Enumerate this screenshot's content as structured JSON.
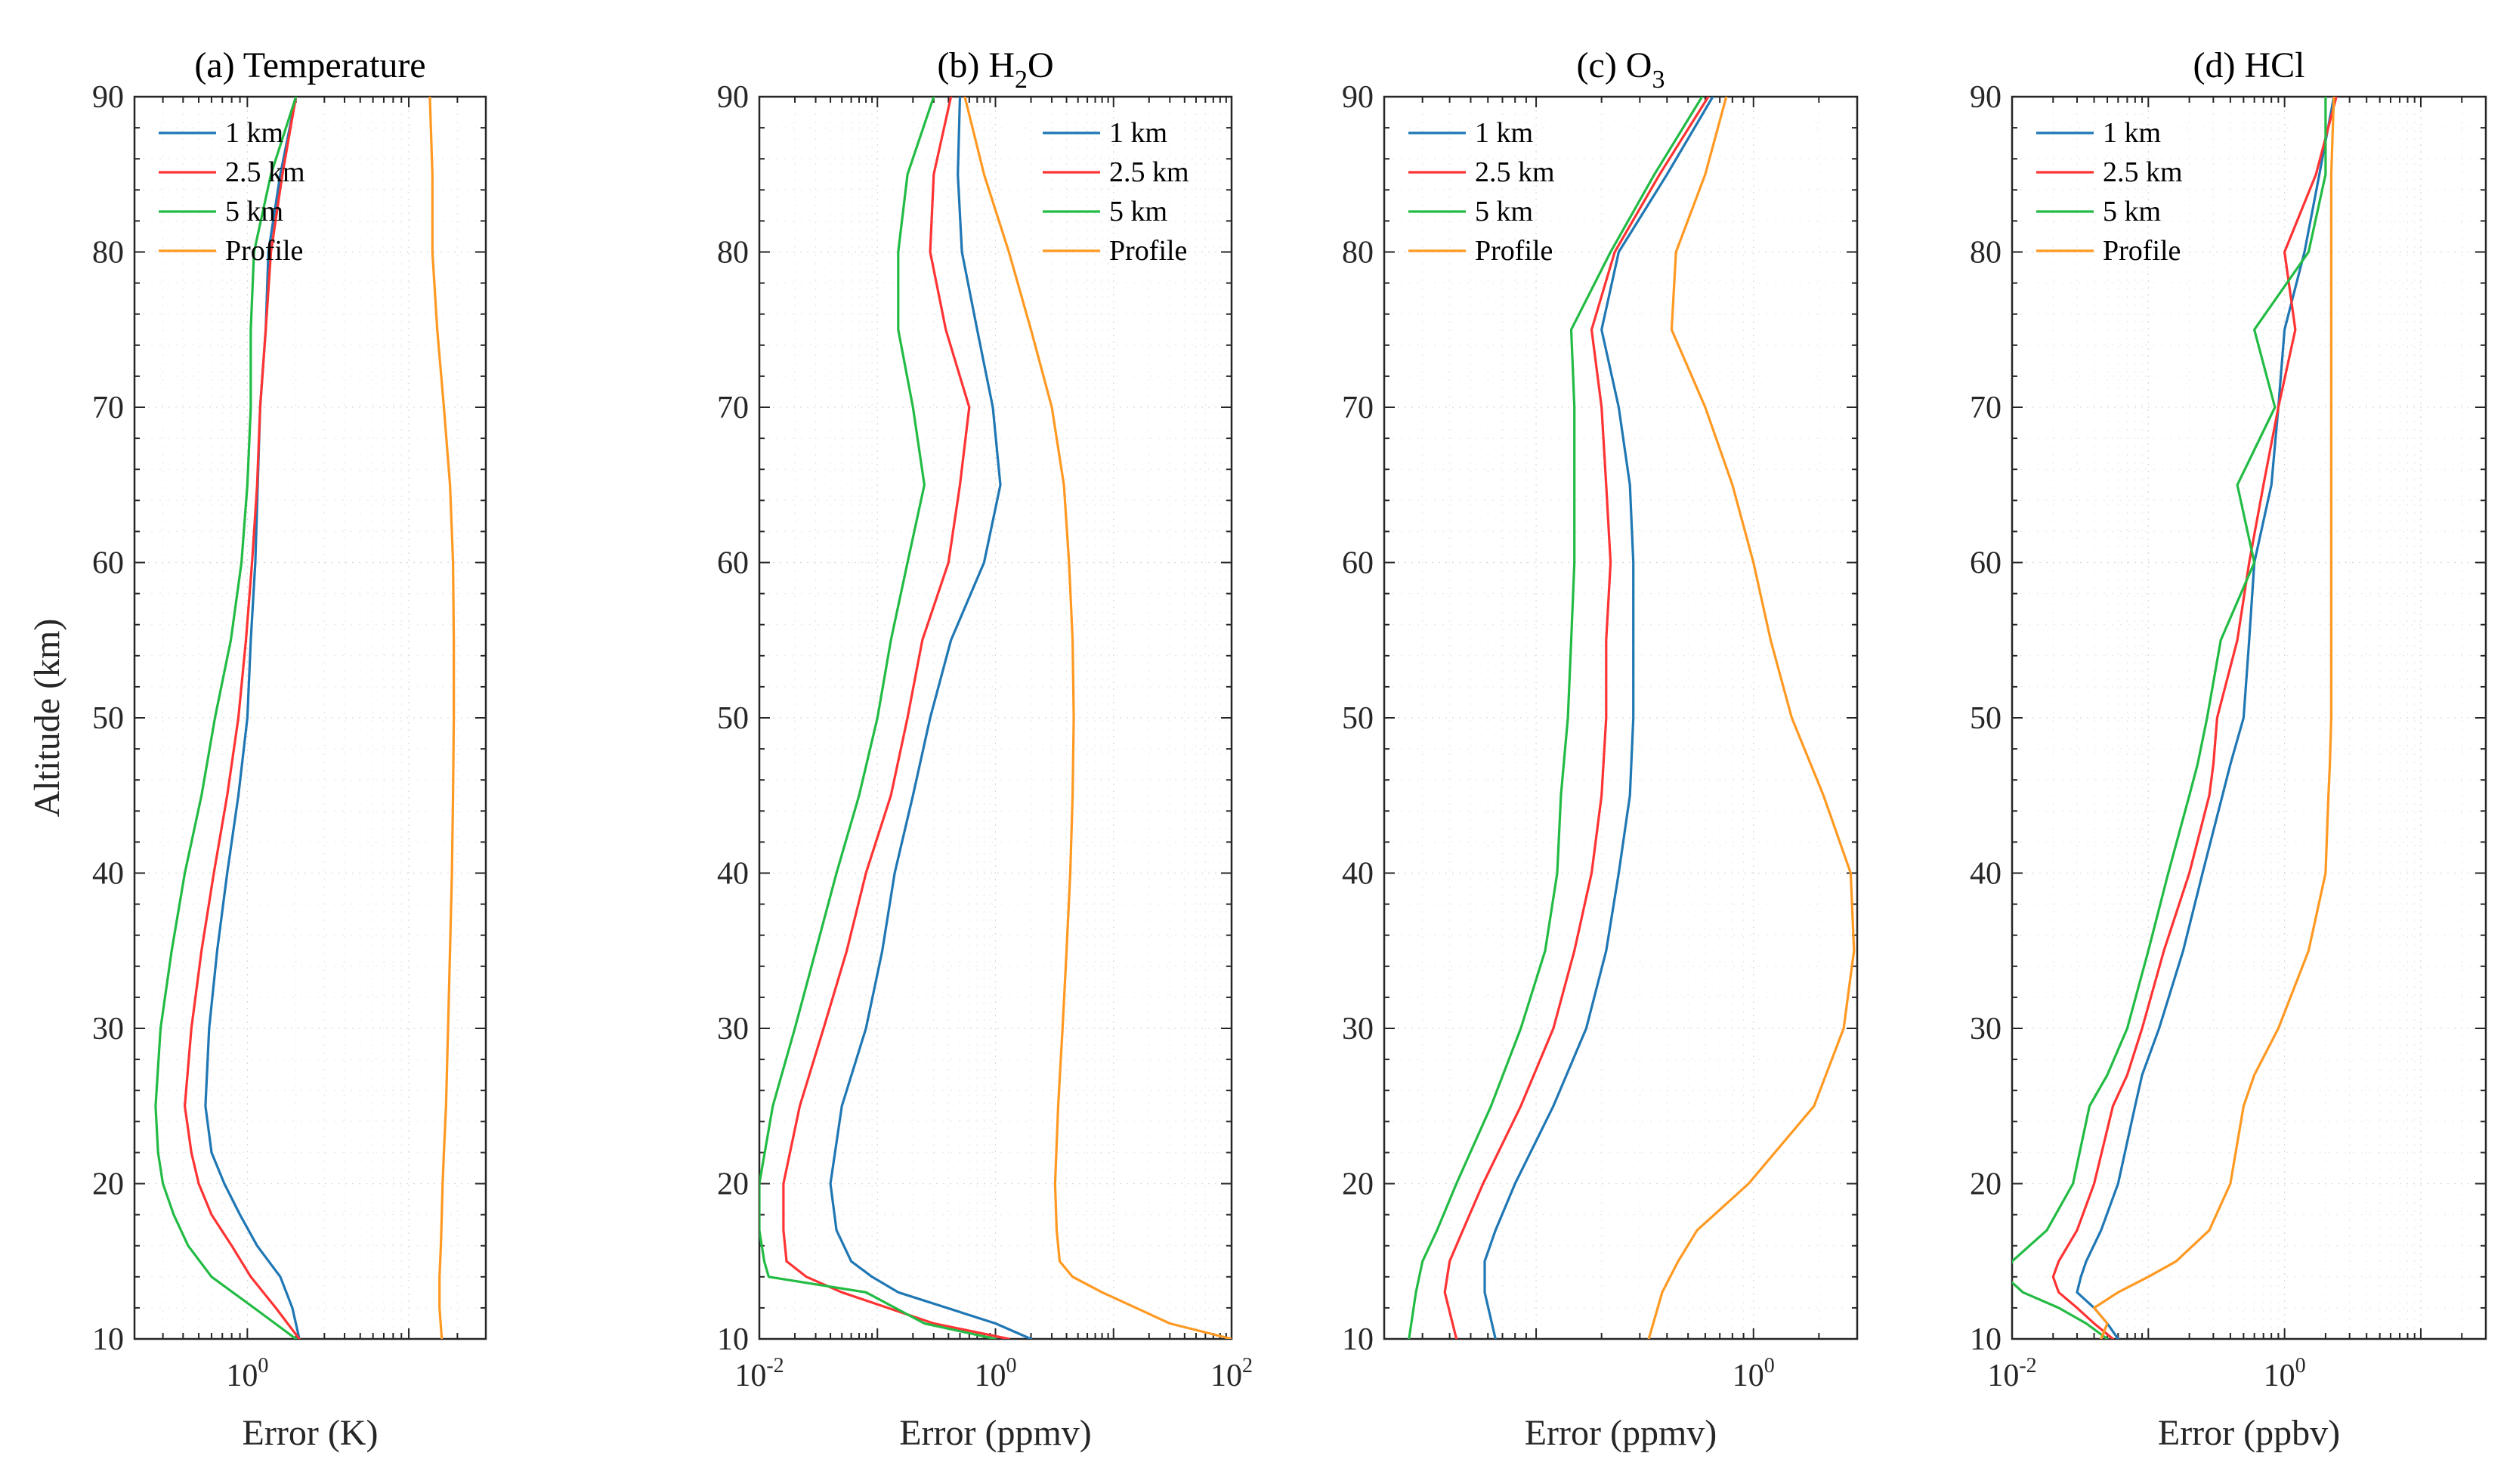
{
  "figure": {
    "ylabel": "Altitude (km)",
    "colors": {
      "1 km": "#1f77b4",
      "2.5 km": "#ff3333",
      "5 km": "#22bb44",
      "Profile": "#ff9922"
    }
  },
  "chart_data": [
    {
      "type": "line",
      "title": "(a) Temperature",
      "xlabel": "Error (K)",
      "ylabel": "Altitude (km)",
      "xscale": "log",
      "xlim": [
        0.2,
        30
      ],
      "ylim": [
        10,
        90
      ],
      "yticks": [
        10,
        20,
        30,
        40,
        50,
        60,
        70,
        80,
        90
      ],
      "xticks": [
        {
          "base": "10",
          "exp": "0",
          "value": 1
        }
      ],
      "legend": "top-left",
      "grid": true,
      "y": [
        10,
        12,
        14,
        16,
        18,
        20,
        22,
        25,
        30,
        35,
        40,
        45,
        50,
        55,
        60,
        65,
        70,
        75,
        80,
        85,
        90
      ],
      "series": [
        {
          "name": "1 km",
          "values": [
            2.1,
            1.9,
            1.6,
            1.15,
            0.9,
            0.72,
            0.6,
            0.55,
            0.58,
            0.65,
            0.75,
            0.88,
            1.0,
            1.05,
            1.12,
            1.16,
            1.2,
            1.3,
            1.35,
            1.6,
            2.0
          ]
        },
        {
          "name": "2.5 km",
          "values": [
            2.1,
            1.5,
            1.05,
            0.8,
            0.6,
            0.5,
            0.45,
            0.41,
            0.45,
            0.52,
            0.62,
            0.75,
            0.88,
            0.98,
            1.07,
            1.15,
            1.2,
            1.3,
            1.4,
            1.65,
            2.0
          ]
        },
        {
          "name": "5 km",
          "values": [
            2.0,
            1.1,
            0.6,
            0.43,
            0.35,
            0.3,
            0.28,
            0.27,
            0.29,
            0.34,
            0.41,
            0.52,
            0.63,
            0.79,
            0.92,
            1.0,
            1.05,
            1.05,
            1.1,
            1.4,
            2.0
          ]
        },
        {
          "name": "Profile",
          "values": [
            16.0,
            15.5,
            15.5,
            15.8,
            16.0,
            16.2,
            16.5,
            17.0,
            17.5,
            18.0,
            18.5,
            18.8,
            19.0,
            19.0,
            18.8,
            18.0,
            16.5,
            15.0,
            14.0,
            14.0,
            13.5
          ]
        }
      ]
    },
    {
      "type": "line",
      "title": "(b) H2O",
      "title_parts": {
        "pre": "(b) H",
        "sub": "2",
        "post": "O"
      },
      "xlabel": "Error (ppmv)",
      "ylabel": "",
      "xscale": "log",
      "xlim": [
        0.01,
        100
      ],
      "ylim": [
        10,
        90
      ],
      "yticks": [
        10,
        20,
        30,
        40,
        50,
        60,
        70,
        80,
        90
      ],
      "xticks": [
        {
          "base": "10",
          "exp": "-2",
          "value": 0.01
        },
        {
          "base": "10",
          "exp": "0",
          "value": 1
        },
        {
          "base": "10",
          "exp": "2",
          "value": 100
        }
      ],
      "legend": "top-right",
      "grid": true,
      "y": [
        10,
        11,
        13,
        14,
        15,
        17,
        20,
        25,
        30,
        35,
        40,
        45,
        50,
        55,
        60,
        65,
        70,
        75,
        80,
        85,
        90
      ],
      "series": [
        {
          "name": "1 km",
          "values": [
            2.0,
            1.0,
            0.15,
            0.09,
            0.06,
            0.045,
            0.04,
            0.05,
            0.08,
            0.11,
            0.14,
            0.2,
            0.28,
            0.42,
            0.8,
            1.1,
            0.95,
            0.7,
            0.52,
            0.48,
            0.5
          ]
        },
        {
          "name": "2.5 km",
          "values": [
            1.3,
            0.3,
            0.05,
            0.025,
            0.017,
            0.016,
            0.016,
            0.022,
            0.035,
            0.055,
            0.08,
            0.13,
            0.18,
            0.24,
            0.4,
            0.5,
            0.6,
            0.38,
            0.28,
            0.3,
            0.42
          ]
        },
        {
          "name": "5 km",
          "values": [
            1.0,
            0.25,
            0.08,
            0.012,
            0.011,
            0.01,
            0.01,
            0.013,
            0.02,
            0.03,
            0.045,
            0.07,
            0.1,
            0.13,
            0.18,
            0.25,
            0.2,
            0.15,
            0.15,
            0.18,
            0.3
          ]
        },
        {
          "name": "Profile",
          "values": [
            100,
            30,
            8.0,
            4.5,
            3.5,
            3.3,
            3.2,
            3.4,
            3.7,
            4.0,
            4.3,
            4.5,
            4.6,
            4.5,
            4.2,
            3.8,
            3.0,
            2.0,
            1.3,
            0.8,
            0.55
          ]
        }
      ]
    },
    {
      "type": "line",
      "title": "(c) O3",
      "title_parts": {
        "pre": "(c) O",
        "sub": "3",
        "post": ""
      },
      "xlabel": "Error (ppmv)",
      "ylabel": "",
      "xscale": "log",
      "xlim": [
        0.02,
        3
      ],
      "ylim": [
        10,
        90
      ],
      "yticks": [
        10,
        20,
        30,
        40,
        50,
        60,
        70,
        80,
        90
      ],
      "xticks": [
        {
          "base": "10",
          "exp": "0",
          "value": 1
        }
      ],
      "legend": "top-left",
      "grid": true,
      "y": [
        10,
        13,
        15,
        17,
        20,
        25,
        30,
        35,
        40,
        45,
        50,
        55,
        60,
        65,
        70,
        75,
        80,
        85,
        90
      ],
      "series": [
        {
          "name": "1 km",
          "values": [
            0.065,
            0.058,
            0.058,
            0.065,
            0.08,
            0.12,
            0.17,
            0.21,
            0.24,
            0.27,
            0.28,
            0.28,
            0.28,
            0.27,
            0.24,
            0.2,
            0.24,
            0.4,
            0.65
          ]
        },
        {
          "name": "2.5 km",
          "values": [
            0.043,
            0.038,
            0.04,
            0.046,
            0.057,
            0.085,
            0.12,
            0.15,
            0.18,
            0.2,
            0.21,
            0.21,
            0.22,
            0.21,
            0.2,
            0.18,
            0.23,
            0.37,
            0.62
          ]
        },
        {
          "name": "5 km",
          "values": [
            0.026,
            0.028,
            0.03,
            0.035,
            0.043,
            0.062,
            0.085,
            0.11,
            0.125,
            0.13,
            0.14,
            0.145,
            0.15,
            0.15,
            0.15,
            0.145,
            0.22,
            0.35,
            0.58
          ]
        },
        {
          "name": "Profile",
          "values": [
            0.33,
            0.38,
            0.45,
            0.55,
            0.95,
            1.9,
            2.6,
            2.9,
            2.8,
            2.1,
            1.5,
            1.2,
            1.0,
            0.8,
            0.6,
            0.42,
            0.44,
            0.6,
            0.75
          ]
        }
      ]
    },
    {
      "type": "line",
      "title": "(d) HCl",
      "xlabel": "Error (ppbv)",
      "ylabel": "",
      "xscale": "log",
      "xlim": [
        0.01,
        30
      ],
      "ylim": [
        10,
        90
      ],
      "yticks": [
        10,
        20,
        30,
        40,
        50,
        60,
        70,
        80,
        90
      ],
      "xticks": [
        {
          "base": "10",
          "exp": "-2",
          "value": 0.01
        },
        {
          "base": "10",
          "exp": "0",
          "value": 1
        }
      ],
      "legend": "top-left",
      "grid": true,
      "y": [
        10,
        11,
        12,
        13,
        14,
        15,
        17,
        20,
        25,
        27,
        30,
        35,
        40,
        45,
        47,
        50,
        55,
        60,
        65,
        70,
        75,
        80,
        85,
        90
      ],
      "series": [
        {
          "name": "1 km",
          "values": [
            0.06,
            0.05,
            0.04,
            0.03,
            0.032,
            0.035,
            0.045,
            0.06,
            0.08,
            0.09,
            0.12,
            0.18,
            0.25,
            0.35,
            0.4,
            0.5,
            0.55,
            0.6,
            0.8,
            0.9,
            1.0,
            1.4,
            1.8,
            2.3
          ]
        },
        {
          "name": "2.5 km",
          "values": [
            0.055,
            0.04,
            0.03,
            0.022,
            0.02,
            0.022,
            0.03,
            0.04,
            0.055,
            0.07,
            0.09,
            0.13,
            0.2,
            0.28,
            0.3,
            0.32,
            0.45,
            0.55,
            0.7,
            0.9,
            1.2,
            1.0,
            1.7,
            2.4
          ]
        },
        {
          "name": "5 km",
          "values": [
            0.05,
            0.035,
            0.022,
            0.012,
            0.009,
            0.01,
            0.018,
            0.028,
            0.037,
            0.05,
            0.07,
            0.1,
            0.14,
            0.2,
            0.23,
            0.27,
            0.34,
            0.6,
            0.45,
            0.85,
            0.6,
            1.5,
            2.0,
            2.0
          ]
        },
        {
          "name": "Profile",
          "values": [
            0.045,
            0.05,
            0.04,
            0.06,
            0.1,
            0.16,
            0.28,
            0.4,
            0.5,
            0.6,
            0.9,
            1.5,
            2.0,
            2.1,
            2.15,
            2.2,
            2.2,
            2.2,
            2.2,
            2.2,
            2.2,
            2.2,
            2.2,
            2.3
          ]
        }
      ]
    }
  ]
}
